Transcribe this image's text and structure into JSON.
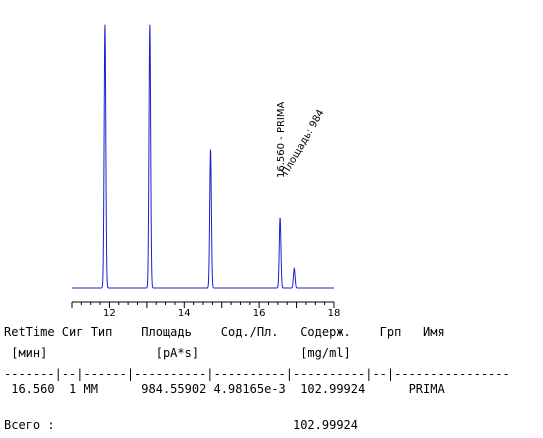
{
  "chart_data": {
    "type": "line",
    "xlim": [
      11.0,
      18.0
    ],
    "ylim": [
      0,
      100
    ],
    "x_tick_labels": [
      "12",
      "14",
      "16",
      "18"
    ],
    "x_ticks": [
      12,
      14,
      16,
      18
    ],
    "line_color": "#1f1fcc",
    "peaks": [
      {
        "rt": 11.88,
        "height": 135
      },
      {
        "rt": 13.08,
        "height": 135
      },
      {
        "rt": 14.7,
        "height": 71
      },
      {
        "rt": 16.56,
        "height": 36
      },
      {
        "rt": 16.94,
        "height": 10
      }
    ],
    "annotations": [
      {
        "rt": 16.56,
        "line1": "16.560 - PRIMA",
        "line2": "Площадь: 984"
      }
    ]
  },
  "report": {
    "header1": "RetTime Сиг Тип    Площадь    Сод./Пл.   Содерж.    Грп   Имя",
    "header2": " [мин]               [pA*s]              [mg/ml]",
    "separator": "-------|--|------|----------|----------|----------|--|----------------",
    "row": " 16.560  1 MM      984.55902 4.98165e-3  102.99924      PRIMA",
    "total": "Всего :                                 102.99924"
  }
}
